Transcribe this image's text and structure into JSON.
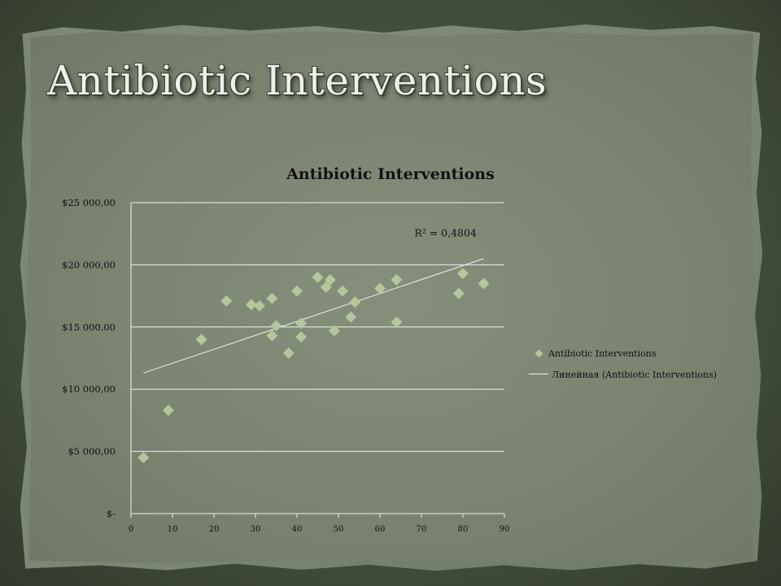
{
  "slide": {
    "title": "Antibiotic Interventions"
  },
  "colors": {
    "marker": "#b4c69c",
    "trendline": "#f2f2ee",
    "gridline": "#f2f2ee"
  },
  "chart_data": {
    "type": "scatter",
    "title": "Antibiotic Interventions",
    "xlabel": "",
    "ylabel": "",
    "xlim": [
      0,
      90
    ],
    "ylim": [
      0,
      25000
    ],
    "x_ticks": [
      "0",
      "10",
      "20",
      "30",
      "40",
      "50",
      "60",
      "70",
      "80",
      "90"
    ],
    "y_ticks": [
      "$-",
      "$5 000,00",
      "$10 000,00",
      "$15 000,00",
      "$20 000,00",
      "$25 000,00"
    ],
    "grid": "horizontal",
    "legend_position": "right",
    "legend": [
      "Antibiotic Interventions",
      "Линейная (Antibiotic Interventions)"
    ],
    "series": [
      {
        "name": "Antibiotic Interventions",
        "marker": "diamond",
        "points": [
          [
            3,
            4500
          ],
          [
            9,
            8300
          ],
          [
            17,
            14000
          ],
          [
            23,
            17100
          ],
          [
            29,
            16800
          ],
          [
            31,
            16700
          ],
          [
            34,
            14300
          ],
          [
            34,
            17300
          ],
          [
            35,
            15100
          ],
          [
            38,
            12900
          ],
          [
            40,
            17900
          ],
          [
            41,
            15300
          ],
          [
            41,
            14200
          ],
          [
            45,
            19000
          ],
          [
            47,
            18200
          ],
          [
            48,
            18800
          ],
          [
            49,
            14700
          ],
          [
            51,
            17900
          ],
          [
            53,
            15800
          ],
          [
            54,
            17000
          ],
          [
            60,
            18100
          ],
          [
            64,
            18800
          ],
          [
            64,
            15400
          ],
          [
            79,
            17700
          ],
          [
            80,
            19300
          ],
          [
            85,
            18500
          ]
        ]
      }
    ],
    "trendline": {
      "name": "Линейная (Antibiotic Interventions)",
      "type": "linear",
      "x_range": [
        3,
        85
      ],
      "y_range": [
        11300,
        20500
      ],
      "r_squared_label": "R² = 0,4804"
    }
  }
}
